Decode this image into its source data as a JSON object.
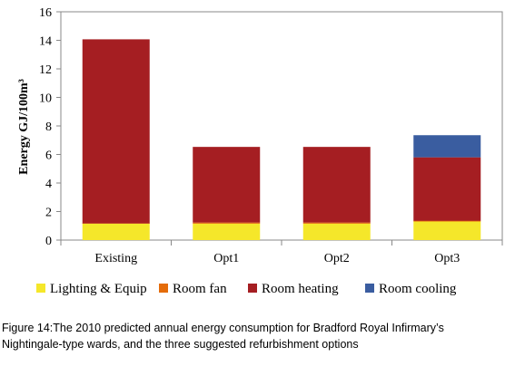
{
  "chart_data": {
    "type": "bar",
    "stacked": true,
    "categories": [
      "Existing",
      "Opt1",
      "Opt2",
      "Opt3"
    ],
    "series": [
      {
        "name": "Lighting & Equip",
        "color": "#f5e72a",
        "values": [
          1.15,
          1.15,
          1.15,
          1.3
        ]
      },
      {
        "name": "Room fan",
        "color": "#e46c0a",
        "values": [
          0.02,
          0.08,
          0.08,
          0.05
        ]
      },
      {
        "name": "Room heating",
        "color": "#a51e22",
        "values": [
          12.9,
          5.3,
          5.3,
          4.45
        ]
      },
      {
        "name": "Room cooling",
        "color": "#3a5da0",
        "values": [
          0,
          0,
          0,
          1.55
        ]
      }
    ],
    "ylabel": "Energy GJ/100m³",
    "ylim": [
      0,
      16
    ],
    "yticks": [
      0,
      2,
      4,
      6,
      8,
      10,
      12,
      14,
      16
    ],
    "grid": false,
    "legend_position": "bottom"
  },
  "caption": {
    "line1": "Figure 14:The 2010 predicted annual energy consumption for Bradford Royal Infirmary’s",
    "line2": "Nightingale-type wards, and the three suggested refurbishment options"
  }
}
